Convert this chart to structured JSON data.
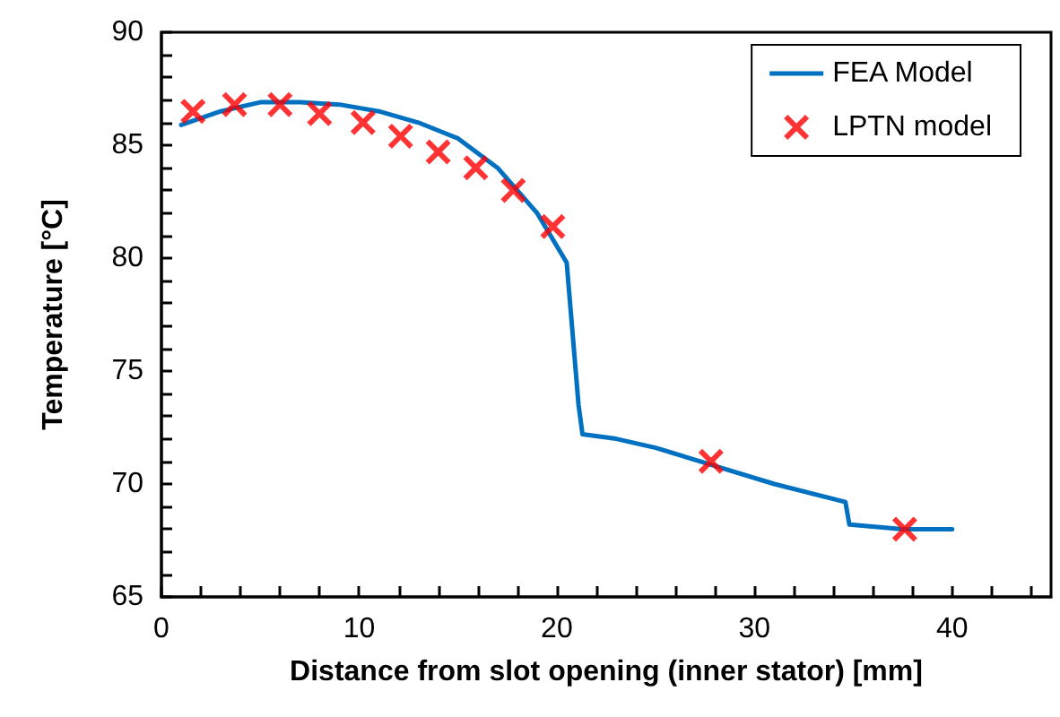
{
  "chart_data": {
    "type": "line",
    "xlabel": "Distance from slot opening (inner stator) [mm]",
    "ylabel": "Temperature [°C]",
    "xlim": [
      0,
      45
    ],
    "ylim": [
      65,
      90
    ],
    "xticks": [
      0,
      {
        "value": 2,
        "label": null
      },
      {
        "value": 4,
        "label": null
      },
      {
        "value": 6,
        "label": null
      },
      {
        "value": 8,
        "label": null
      },
      10,
      {
        "value": 12,
        "label": null
      },
      {
        "value": 14,
        "label": null
      },
      {
        "value": 16,
        "label": null
      },
      {
        "value": 18,
        "label": null
      },
      20,
      {
        "value": 22,
        "label": null
      },
      {
        "value": 24,
        "label": null
      },
      {
        "value": 26,
        "label": null
      },
      {
        "value": 28,
        "label": null
      },
      30,
      {
        "value": 32,
        "label": null
      },
      {
        "value": 34,
        "label": null
      },
      {
        "value": 36,
        "label": null
      },
      {
        "value": 38,
        "label": null
      },
      40,
      {
        "value": 42,
        "label": null
      },
      {
        "value": 44,
        "label": null
      }
    ],
    "yticks": [
      65,
      {
        "value": 66,
        "label": null
      },
      {
        "value": 67,
        "label": null
      },
      {
        "value": 68,
        "label": null
      },
      {
        "value": 69,
        "label": null
      },
      70,
      {
        "value": 71,
        "label": null
      },
      {
        "value": 72,
        "label": null
      },
      {
        "value": 73,
        "label": null
      },
      {
        "value": 74,
        "label": null
      },
      75,
      {
        "value": 76,
        "label": null
      },
      {
        "value": 77,
        "label": null
      },
      {
        "value": 78,
        "label": null
      },
      {
        "value": 79,
        "label": null
      },
      80,
      {
        "value": 81,
        "label": null
      },
      {
        "value": 82,
        "label": null
      },
      {
        "value": 83,
        "label": null
      },
      {
        "value": 84,
        "label": null
      },
      85,
      {
        "value": 86,
        "label": null
      },
      {
        "value": 87,
        "label": null
      },
      {
        "value": 88,
        "label": null
      },
      {
        "value": 89,
        "label": null
      },
      90
    ],
    "grid": false,
    "legend": "top right",
    "series": [
      {
        "name": "FEA Model",
        "color": "#0070c0",
        "marker": "none",
        "line_style": "solid",
        "x": [
          1,
          3,
          5,
          7,
          9,
          11,
          13,
          15,
          17,
          19,
          20.5,
          21.1,
          21.3,
          23,
          25,
          28,
          31,
          34.6,
          34.8,
          37.5,
          40
        ],
        "values": [
          85.9,
          86.5,
          86.9,
          86.9,
          86.8,
          86.5,
          86.0,
          85.3,
          84.0,
          82.0,
          79.8,
          73.5,
          72.2,
          72.0,
          71.6,
          70.8,
          70.0,
          69.2,
          68.2,
          68.0,
          68.0
        ]
      },
      {
        "name": "LPTN model",
        "type": "scatter",
        "color": "#ff0000",
        "marker": "cross",
        "x": [
          1.6,
          3.7,
          6.0,
          8.0,
          10.2,
          12.1,
          14.0,
          15.9,
          17.8,
          19.8,
          27.8,
          37.6
        ],
        "values": [
          86.5,
          86.8,
          86.8,
          86.4,
          86.0,
          85.4,
          84.7,
          84.0,
          83.0,
          81.4,
          71.0,
          68.0
        ]
      }
    ]
  }
}
